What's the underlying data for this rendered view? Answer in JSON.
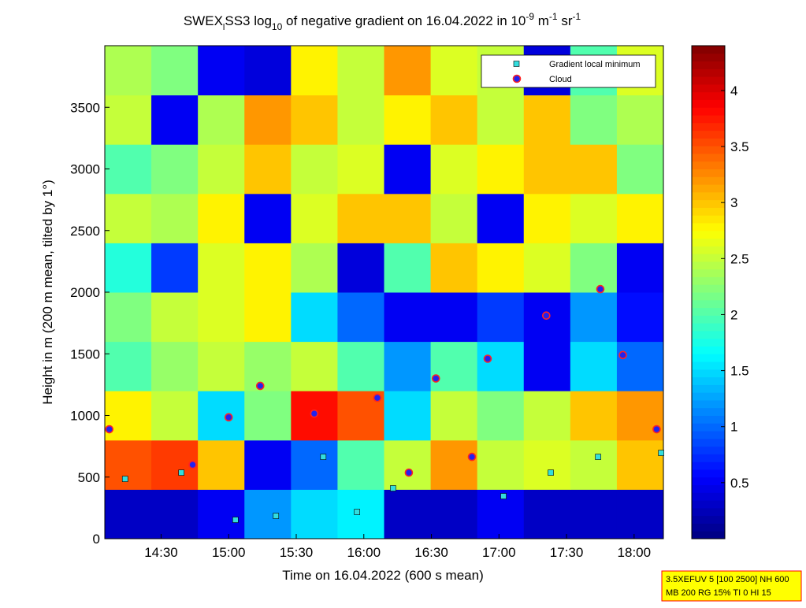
{
  "chart_data": {
    "type": "heatmap-scatter",
    "title_parts": [
      "SWEX",
      "l",
      "SS3 log",
      "10",
      " of negative gradient on 16.04.2022 in 10",
      "-9",
      " m",
      "-1",
      " sr",
      "-1"
    ],
    "xlabel": "Time on 16.04.2022 (600 s mean)",
    "ylabel": "Height in m (200 m mean, tilted by 1°)",
    "xlim": [
      845,
      1093
    ],
    "ylim": [
      0,
      4000
    ],
    "xticks": [
      {
        "value": 870,
        "label": "14:30"
      },
      {
        "value": 900,
        "label": "15:00"
      },
      {
        "value": 930,
        "label": "15:30"
      },
      {
        "value": 960,
        "label": "16:00"
      },
      {
        "value": 990,
        "label": "16:30"
      },
      {
        "value": 1020,
        "label": "17:00"
      },
      {
        "value": 1050,
        "label": "17:30"
      },
      {
        "value": 1080,
        "label": "18:00"
      }
    ],
    "yticks": [
      0,
      500,
      1000,
      1500,
      2000,
      2500,
      3000,
      3500
    ],
    "clim": [
      0,
      4.4
    ],
    "cticks": [
      0.5,
      1,
      1.5,
      2,
      2.5,
      3,
      3.5,
      4
    ],
    "z": [
      [
        0.3,
        0.3,
        0.5,
        1.2,
        1.5,
        1.6,
        0.3,
        0.3,
        0.5,
        0.3,
        0.3,
        0.3
      ],
      [
        3.5,
        3.6,
        3.0,
        0.5,
        1.0,
        2.0,
        2.5,
        3.2,
        2.5,
        2.6,
        2.5,
        3.0
      ],
      [
        2.8,
        2.5,
        1.5,
        2.2,
        3.8,
        3.5,
        1.5,
        2.5,
        2.2,
        2.5,
        3.0,
        3.2
      ],
      [
        2.0,
        2.3,
        2.5,
        2.3,
        2.5,
        2.0,
        1.2,
        2.0,
        1.5,
        0.5,
        1.5,
        1.0
      ],
      [
        2.2,
        2.5,
        2.6,
        2.8,
        1.5,
        1.0,
        0.5,
        0.5,
        0.8,
        0.5,
        1.2,
        0.6
      ],
      [
        1.8,
        0.8,
        2.6,
        2.8,
        2.4,
        0.4,
        2.0,
        3.0,
        2.8,
        2.6,
        2.2,
        0.5
      ],
      [
        2.5,
        2.4,
        2.8,
        0.5,
        2.6,
        3.0,
        3.0,
        2.5,
        0.5,
        2.8,
        2.6,
        2.8
      ],
      [
        2.0,
        2.2,
        2.5,
        3.0,
        2.5,
        2.6,
        0.5,
        2.6,
        2.8,
        3.0,
        3.0,
        2.2
      ],
      [
        2.5,
        0.5,
        2.4,
        3.2,
        3.0,
        2.5,
        2.8,
        3.0,
        2.5,
        3.0,
        2.2,
        2.4
      ],
      [
        2.4,
        2.2,
        0.5,
        0.4,
        2.8,
        2.5,
        3.2,
        2.6,
        2.5,
        0.4,
        2.0,
        2.6
      ]
    ],
    "series": [
      {
        "name": "Gradient local minimum",
        "color": "#33dddd",
        "marker": "square",
        "x": [
          854,
          879,
          903,
          921,
          942,
          957,
          973,
          1022,
          1043,
          1064,
          1092
        ],
        "y": [
          485,
          536,
          153,
          185,
          664,
          217,
          409,
          345,
          536,
          664,
          696
        ]
      },
      {
        "name": "Cloud",
        "color": "#2222ee",
        "marker": "circle",
        "x": [
          847,
          884,
          900,
          914,
          938,
          966,
          980,
          992,
          1008,
          1015,
          1041,
          1065,
          1075,
          1090
        ],
        "y": [
          888,
          600,
          985,
          1240,
          1015,
          1143,
          536,
          1300,
          664,
          1460,
          1810,
          2025,
          1490,
          888
        ]
      }
    ],
    "annotation": [
      "3.5XEFUV 5 [100 2500] NH 600",
      "MB 200 RG 15% TI 0 HI 15"
    ]
  }
}
